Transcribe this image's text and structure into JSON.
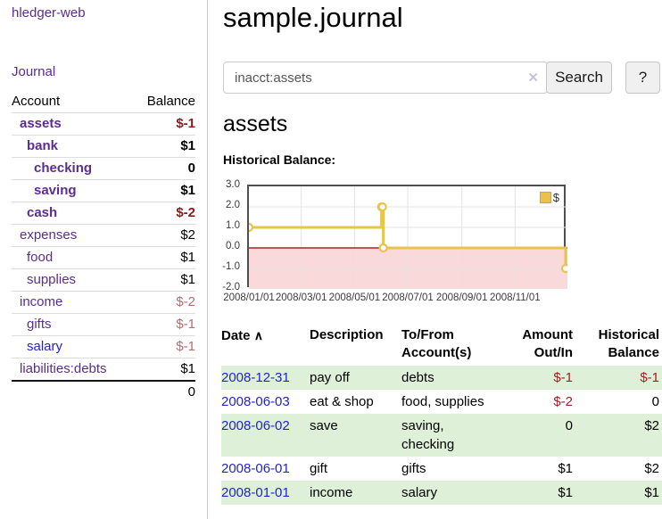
{
  "app": {
    "brand": "hledger-web"
  },
  "sidebar": {
    "nav_journal": "Journal",
    "accounts_table": {
      "headers": {
        "account": "Account",
        "balance": "Balance"
      },
      "rows": [
        {
          "name": "assets",
          "balance": "$-1",
          "level": 1,
          "bold": true,
          "balance_style": "neg-strong",
          "name_style": "purple"
        },
        {
          "name": "bank",
          "balance": "$1",
          "level": 2,
          "bold": true,
          "balance_style": "pos",
          "name_style": "purple"
        },
        {
          "name": "checking",
          "balance": "0",
          "level": 3,
          "bold": true,
          "balance_style": "pos",
          "name_style": "purple"
        },
        {
          "name": "saving",
          "balance": "$1",
          "level": 3,
          "bold": true,
          "balance_style": "pos",
          "name_style": "purple"
        },
        {
          "name": "cash",
          "balance": "$-2",
          "level": 2,
          "bold": true,
          "balance_style": "neg-strong",
          "name_style": "purple"
        },
        {
          "name": "expenses",
          "balance": "$2",
          "level": 1,
          "bold": false,
          "balance_style": "pos",
          "name_style": "purple"
        },
        {
          "name": "food",
          "balance": "$1",
          "level": 2,
          "bold": false,
          "balance_style": "pos",
          "name_style": "purple"
        },
        {
          "name": "supplies",
          "balance": "$1",
          "level": 2,
          "bold": false,
          "balance_style": "pos",
          "name_style": "purple"
        },
        {
          "name": "income",
          "balance": "$-2",
          "level": 1,
          "bold": false,
          "balance_style": "neg-soft",
          "name_style": "purple"
        },
        {
          "name": "gifts",
          "balance": "$-1",
          "level": 2,
          "bold": false,
          "balance_style": "neg-soft",
          "name_style": "purple"
        },
        {
          "name": "salary",
          "balance": "$-1",
          "level": 2,
          "bold": false,
          "balance_style": "neg-soft",
          "name_style": "blue"
        },
        {
          "name": "liabilities:debts",
          "balance": "$1",
          "level": 1,
          "bold": false,
          "balance_style": "pos",
          "name_style": "purple"
        }
      ],
      "total": "0"
    }
  },
  "header": {
    "title": "sample.journal"
  },
  "search": {
    "value": "inacct:assets",
    "clear_icon": "✕",
    "button_label": "Search",
    "help_label": "?"
  },
  "account_page": {
    "title": "assets",
    "chart_label": "Historical Balance:"
  },
  "chart_data": {
    "type": "line",
    "step": true,
    "title": "Historical Balance:",
    "legend": [
      {
        "label": "$",
        "color": "#ecc14b"
      }
    ],
    "legend_position": "top-right",
    "series": [
      {
        "name": "$",
        "points": [
          {
            "date": "2008/01/01",
            "day": 0,
            "value": 1
          },
          {
            "date": "2008/06/01",
            "day": 152,
            "value": 2
          },
          {
            "date": "2008/06/02",
            "day": 153,
            "value": 2
          },
          {
            "date": "2008/06/03",
            "day": 154,
            "value": 0
          },
          {
            "date": "2008/12/31",
            "day": 365,
            "value": -1
          }
        ]
      }
    ],
    "x_ticks": [
      {
        "label": "2008/01/01",
        "day": 0
      },
      {
        "label": "2008/03/01",
        "day": 60
      },
      {
        "label": "2008/05/01",
        "day": 121
      },
      {
        "label": "2008/07/01",
        "day": 182
      },
      {
        "label": "2008/09/01",
        "day": 244
      },
      {
        "label": "2008/11/01",
        "day": 305
      }
    ],
    "y_ticks": [
      {
        "label": "3.0",
        "value": 3
      },
      {
        "label": "2.0",
        "value": 2
      },
      {
        "label": "1.0",
        "value": 1
      },
      {
        "label": "0.0",
        "value": 0
      },
      {
        "label": "-1.0",
        "value": -1
      },
      {
        "label": "-2.0",
        "value": -2
      }
    ],
    "ylim": [
      -2,
      3
    ],
    "xlim_days": [
      0,
      365
    ],
    "grid": true,
    "colors": {
      "line": "#e8c449",
      "marker_fill": "#ffffff",
      "negative_region": "#f9d9d9",
      "zero_line": "#8c0000",
      "gridline": "#e3e3e3",
      "plot_border": "#4f4f4f"
    }
  },
  "register": {
    "headers": {
      "date": "Date",
      "sort_icon": "∧",
      "description": "Description",
      "accounts": "To/From Account(s)",
      "amount": "Amount Out/In",
      "balance": "Historical Balance"
    },
    "rows": [
      {
        "date": "2008-12-31",
        "description": "pay off",
        "accounts": "debts",
        "amount": "$-1",
        "amount_neg": true,
        "balance": "$-1",
        "balance_neg": true
      },
      {
        "date": "2008-06-03",
        "description": "eat & shop",
        "accounts": "food, supplies",
        "amount": "$-2",
        "amount_neg": true,
        "balance": "0",
        "balance_neg": false
      },
      {
        "date": "2008-06-02",
        "description": "save",
        "accounts": "saving, checking",
        "amount": "0",
        "amount_neg": false,
        "balance": "$2",
        "balance_neg": false
      },
      {
        "date": "2008-06-01",
        "description": "gift",
        "accounts": "gifts",
        "amount": "$1",
        "amount_neg": false,
        "balance": "$2",
        "balance_neg": false
      },
      {
        "date": "2008-01-01",
        "description": "income",
        "accounts": "salary",
        "amount": "$1",
        "amount_neg": false,
        "balance": "$1",
        "balance_neg": false
      }
    ]
  }
}
